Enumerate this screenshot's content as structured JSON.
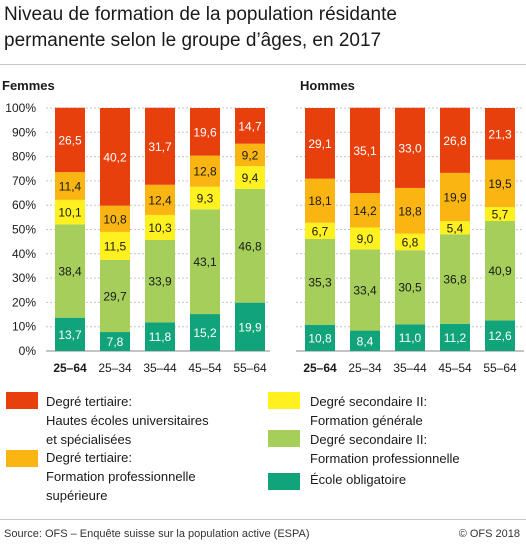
{
  "title_lines": [
    "Niveau de formation de la population résidante",
    "permanente selon le groupe d’âges, en 2017"
  ],
  "colors": {
    "ecole": "#11a37a",
    "sec_prof": "#a5cf5a",
    "sec_gen": "#fff120",
    "tert_pro": "#fbb512",
    "tert_uni": "#e8400d"
  },
  "chart_data": [
    {
      "type": "bar",
      "stacked": true,
      "title": "Femmes",
      "categories": [
        "25–64",
        "25–34",
        "35–44",
        "45–54",
        "55–64"
      ],
      "y_ticks": [
        "0%",
        "10%",
        "20%",
        "30%",
        "40%",
        "50%",
        "60%",
        "70%",
        "80%",
        "90%",
        "100%"
      ],
      "ylim": [
        0,
        100
      ],
      "series": [
        {
          "name": "École obligatoire",
          "color_key": "ecole",
          "values": [
            13.7,
            7.8,
            11.8,
            15.2,
            19.9
          ],
          "labels": [
            "13,7",
            "7,8",
            "11,8",
            "15,2",
            "19,9"
          ]
        },
        {
          "name": "Degré secondaire II: Formation professionnelle",
          "color_key": "sec_prof",
          "values": [
            38.4,
            29.7,
            33.9,
            43.1,
            46.8
          ],
          "labels": [
            "38,4",
            "29,7",
            "33,9",
            "43,1",
            "46,8"
          ]
        },
        {
          "name": "Degré secondaire II: Formation générale",
          "color_key": "sec_gen",
          "values": [
            10.1,
            11.5,
            10.3,
            9.3,
            9.4
          ],
          "labels": [
            "10,1",
            "11,5",
            "10,3",
            "9,3",
            "9,4"
          ]
        },
        {
          "name": "Degré tertiaire: Formation professionnelle supérieure",
          "color_key": "tert_pro",
          "values": [
            11.4,
            10.8,
            12.4,
            12.8,
            9.2
          ],
          "labels": [
            "11,4",
            "10,8",
            "12,4",
            "12,8",
            "9,2"
          ]
        },
        {
          "name": "Degré tertiaire: Hautes écoles universitaires et spécialisées",
          "color_key": "tert_uni",
          "values": [
            26.5,
            40.2,
            31.7,
            19.6,
            14.7
          ],
          "labels": [
            "26,5",
            "40,2",
            "31,7",
            "19,6",
            "14,7"
          ]
        }
      ]
    },
    {
      "type": "bar",
      "stacked": true,
      "title": "Hommes",
      "categories": [
        "25–64",
        "25–34",
        "35–44",
        "45–54",
        "55–64"
      ],
      "ylim": [
        0,
        100
      ],
      "series": [
        {
          "name": "École obligatoire",
          "color_key": "ecole",
          "values": [
            10.8,
            8.4,
            11.0,
            11.2,
            12.6
          ],
          "labels": [
            "10,8",
            "8,4",
            "11,0",
            "11,2",
            "12,6"
          ]
        },
        {
          "name": "Degré secondaire II: Formation professionnelle",
          "color_key": "sec_prof",
          "values": [
            35.3,
            33.4,
            30.5,
            36.8,
            40.9
          ],
          "labels": [
            "35,3",
            "33,4",
            "30,5",
            "36,8",
            "40,9"
          ]
        },
        {
          "name": "Degré secondaire II: Formation générale",
          "color_key": "sec_gen",
          "values": [
            6.7,
            9.0,
            6.8,
            5.4,
            5.7
          ],
          "labels": [
            "6,7",
            "9,0",
            "6,8",
            "5,4",
            "5,7"
          ]
        },
        {
          "name": "Degré tertiaire: Formation professionnelle supérieure",
          "color_key": "tert_pro",
          "values": [
            18.1,
            14.2,
            18.8,
            19.9,
            19.5
          ],
          "labels": [
            "18,1",
            "14,2",
            "18,8",
            "19,9",
            "19,5"
          ]
        },
        {
          "name": "Degré tertiaire: Hautes écoles universitaires et spécialisées",
          "color_key": "tert_uni",
          "values": [
            29.1,
            35.1,
            33.0,
            26.8,
            21.3
          ],
          "labels": [
            "29,1",
            "35,1",
            "33,0",
            "26,8",
            "21,3"
          ]
        }
      ]
    }
  ],
  "legend": [
    {
      "color_key": "tert_uni",
      "lines": [
        "Degré tertiaire:",
        "Hautes écoles universitaires",
        "et spécialisées"
      ]
    },
    {
      "color_key": "tert_pro",
      "lines": [
        "Degré tertiaire:",
        "Formation professionnelle",
        "supérieure"
      ]
    },
    {
      "color_key": "sec_gen",
      "lines": [
        "Degré secondaire II:",
        "Formation générale"
      ]
    },
    {
      "color_key": "sec_prof",
      "lines": [
        "Degré secondaire II:",
        "Formation professionnelle"
      ]
    },
    {
      "color_key": "ecole",
      "lines": [
        "École obligatoire"
      ]
    }
  ],
  "footer": {
    "source": "Source: OFS – Enquête suisse sur la population active (ESPA)",
    "copyright": "© OFS 2018"
  }
}
